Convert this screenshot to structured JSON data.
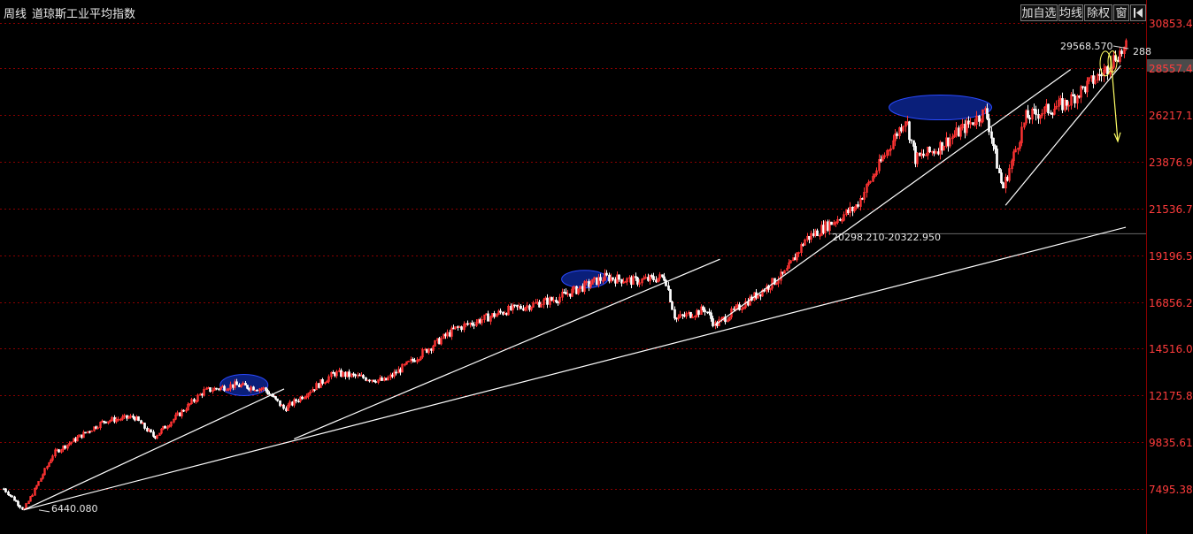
{
  "header": {
    "period": "周线",
    "name": "道琼斯工业平均指数"
  },
  "toolbar": {
    "fav_label": "加自选",
    "ma_label": "均线",
    "div_label": "除权",
    "win_label": "窗",
    "back_icon": "back-arrow-icon"
  },
  "colors": {
    "up": "#ff3333",
    "down": "#ffffff",
    "grid": "#8b0000",
    "axis_text": "#ff3c3c",
    "trendline": "#ffffff",
    "highlight": "#0a1f7a",
    "arrow": "#ffff66"
  },
  "annotations": {
    "low_label": "6440.080",
    "high_label": "29568.570",
    "high_right_label": "288",
    "range_label": "20298.210-20322.950"
  },
  "chart_data": {
    "type": "candlestick",
    "title": "道琼斯工业平均指数",
    "period": "周线",
    "ylim": [
      6250,
      31300
    ],
    "yticks": [
      "30853.48",
      "28557.41",
      "26217.19",
      "23876.96",
      "21536.74",
      "19196.51",
      "16856.29",
      "14516.06",
      "12175.84",
      "9835.614",
      "7495.389"
    ],
    "ytick_values": [
      30853.48,
      28557.41,
      26217.19,
      23876.96,
      21536.74,
      19196.51,
      16856.29,
      14516.06,
      12175.84,
      9835.614,
      7495.389
    ],
    "grid": true,
    "x": [
      2009.0,
      2009.2,
      2009.5,
      2010.0,
      2010.3,
      2010.5,
      2011.0,
      2011.3,
      2011.6,
      2011.8,
      2012.3,
      2012.8,
      2013.5,
      2014.0,
      2014.5,
      2015.0,
      2015.3,
      2015.6,
      2015.7,
      2016.0,
      2016.1,
      2016.8,
      2017.0,
      2017.5,
      2018.0,
      2018.1,
      2018.3,
      2018.8,
      2018.97,
      2019.2,
      2019.6,
      2020.0,
      2020.1,
      2020.2
    ],
    "close": [
      7500,
      6440,
      9300,
      10900,
      11100,
      10100,
      12400,
      12700,
      12500,
      11500,
      13300,
      12900,
      15500,
      16400,
      17000,
      18100,
      17900,
      18100,
      16000,
      16500,
      15700,
      18300,
      20000,
      21600,
      26100,
      24000,
      24500,
      26400,
      22500,
      26100,
      26800,
      28500,
      29200,
      29568.57
    ],
    "low_point": {
      "value": 6440.08
    },
    "high_point": {
      "value": 29568.57
    },
    "level_band": [
      20298.21,
      20322.95
    ]
  }
}
